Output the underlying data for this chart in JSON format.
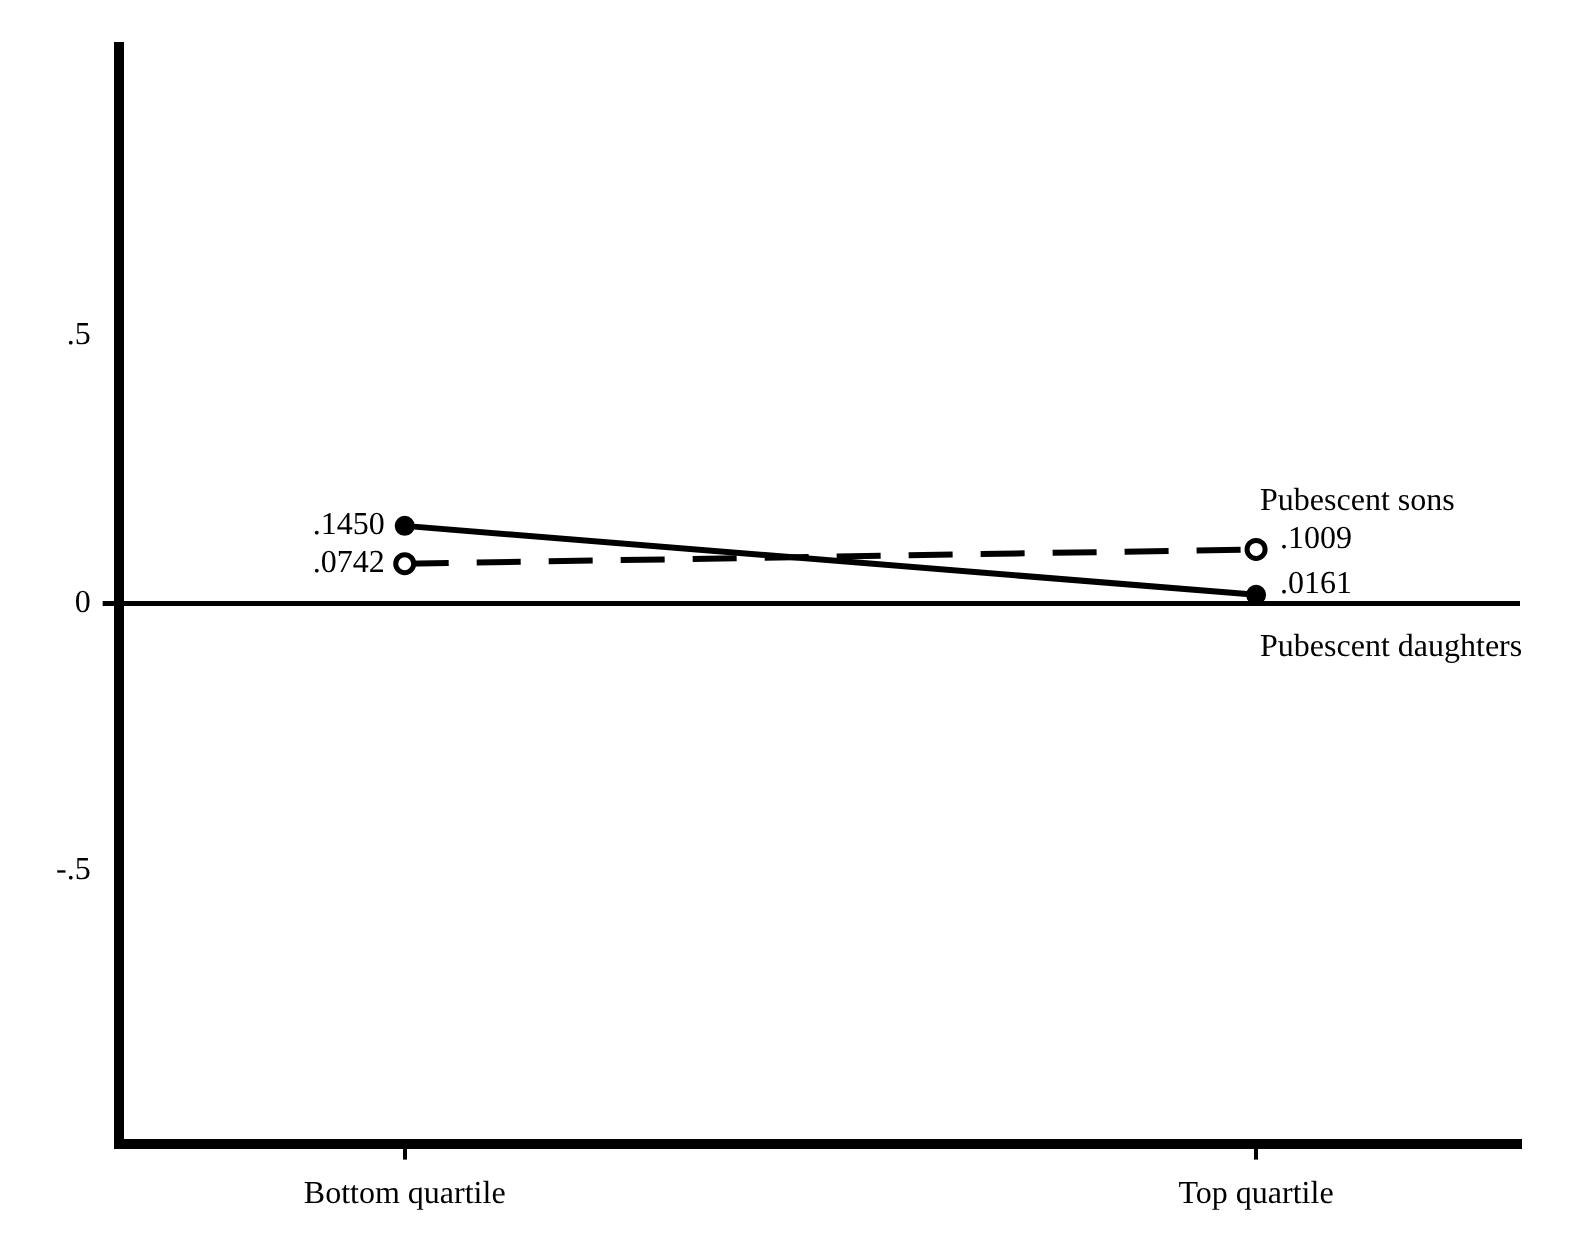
{
  "chart_data": {
    "type": "line",
    "categories": [
      "Bottom quartile",
      "Top quartile"
    ],
    "series": [
      {
        "name": "Pubescent sons",
        "color": "#000000",
        "values": [
          0.0742,
          0.1009
        ],
        "value_labels": [
          ".0742",
          ".1009"
        ],
        "line_style": "dashed",
        "marker": "circle"
      },
      {
        "name": "Pubescent daughters",
        "color": "#000000",
        "values": [
          0.145,
          0.0161
        ],
        "value_labels": [
          ".1450",
          ".0161"
        ],
        "line_style": "solid",
        "marker": "circle"
      }
    ],
    "ylim": [
      -1.01,
      1.04
    ],
    "yticks": [
      {
        "value": 0.5,
        "label": ".5"
      },
      0,
      {
        "value": -0.5,
        "label": "-.5"
      }
    ],
    "ref_lines": [
      {
        "axis": "y",
        "value": 0
      }
    ],
    "grid": false,
    "legend": false
  }
}
